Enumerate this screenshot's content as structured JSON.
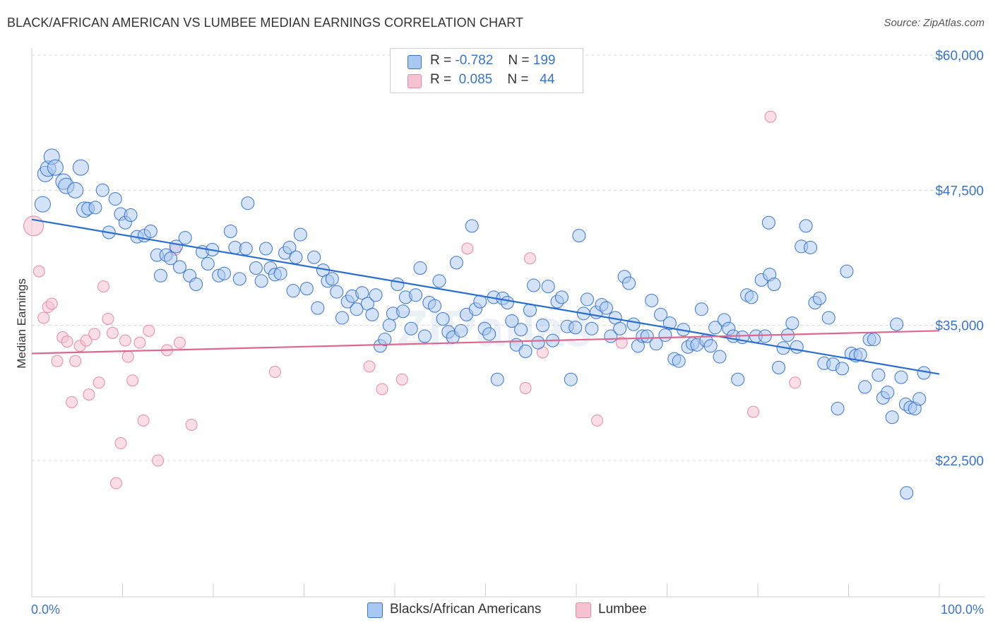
{
  "title": "BLACK/AFRICAN AMERICAN VS LUMBEE MEDIAN EARNINGS CORRELATION CHART",
  "source": "Source: ZipAtlas.com",
  "legend_top": {
    "rows": [
      {
        "r_label": "R =",
        "r_value": "-0.782",
        "n_label": "N =",
        "n_value": "199"
      },
      {
        "r_label": "R =",
        "r_value": "0.085",
        "n_label": "N =",
        "n_value": "44"
      }
    ]
  },
  "legend_bottom": [
    "Blacks/African Americans",
    "Lumbee"
  ],
  "colors": {
    "blue_fill": "#a9c8f1",
    "blue_stroke": "#3a74c9",
    "blue_line": "#2a6dd1",
    "pink_fill": "#f6c2d2",
    "pink_stroke": "#e589a8",
    "pink_line": "#e0668f",
    "tick_text": "#3a74c9",
    "grid": "#d8d8d8"
  },
  "chart_data": {
    "type": "scatter",
    "title": "BLACK/AFRICAN AMERICAN VS LUMBEE MEDIAN EARNINGS CORRELATION CHART",
    "ylabel": "Median Earnings",
    "xlabel": "",
    "xlim": [
      0,
      100
    ],
    "ylim": [
      12000,
      62000
    ],
    "x_tick_labels": [
      "0.0%",
      "100.0%"
    ],
    "y_ticks": [
      22500,
      35000,
      47500,
      60000
    ],
    "y_tick_labels": [
      "$22,500",
      "$35,000",
      "$47,500",
      "$60,000"
    ],
    "grid": true,
    "legend_position": "top-center and bottom",
    "series": [
      {
        "name": "Blacks/African Americans",
        "r": -0.782,
        "n": 199,
        "trend": {
          "x": [
            0,
            100
          ],
          "y": [
            44800,
            30500
          ]
        },
        "points": [
          [
            1.2,
            46200
          ],
          [
            1.5,
            49000
          ],
          [
            1.8,
            49500
          ],
          [
            2.2,
            50600
          ],
          [
            2.6,
            49600
          ],
          [
            3.5,
            48300
          ],
          [
            3.8,
            47900
          ],
          [
            4.8,
            47500
          ],
          [
            5.4,
            49600
          ],
          [
            5.8,
            45700
          ],
          [
            6.2,
            45800
          ],
          [
            7.0,
            45900
          ],
          [
            7.8,
            47500
          ],
          [
            8.5,
            43600
          ],
          [
            9.2,
            46700
          ],
          [
            9.8,
            45300
          ],
          [
            10.3,
            44500
          ],
          [
            10.9,
            45200
          ],
          [
            11.6,
            43200
          ],
          [
            12.4,
            43300
          ],
          [
            13.1,
            43700
          ],
          [
            13.8,
            41500
          ],
          [
            14.2,
            39600
          ],
          [
            14.8,
            41500
          ],
          [
            15.3,
            41200
          ],
          [
            15.9,
            42300
          ],
          [
            16.3,
            40400
          ],
          [
            16.9,
            43100
          ],
          [
            17.4,
            39600
          ],
          [
            18.1,
            38800
          ],
          [
            18.8,
            41800
          ],
          [
            19.4,
            40700
          ],
          [
            19.9,
            42000
          ],
          [
            20.6,
            39600
          ],
          [
            21.2,
            39800
          ],
          [
            21.9,
            43700
          ],
          [
            22.4,
            42200
          ],
          [
            22.9,
            39300
          ],
          [
            23.6,
            42100
          ],
          [
            23.8,
            46300
          ],
          [
            24.7,
            40300
          ],
          [
            25.3,
            39100
          ],
          [
            25.8,
            42100
          ],
          [
            26.3,
            40300
          ],
          [
            26.8,
            39700
          ],
          [
            27.4,
            39800
          ],
          [
            27.9,
            41700
          ],
          [
            28.4,
            42200
          ],
          [
            28.8,
            38200
          ],
          [
            29.1,
            41300
          ],
          [
            29.6,
            43400
          ],
          [
            30.3,
            38400
          ],
          [
            31.1,
            41300
          ],
          [
            31.5,
            36600
          ],
          [
            32.1,
            40100
          ],
          [
            32.6,
            39100
          ],
          [
            33.1,
            39300
          ],
          [
            33.6,
            38100
          ],
          [
            34.2,
            35700
          ],
          [
            34.8,
            37200
          ],
          [
            35.3,
            37700
          ],
          [
            35.8,
            36500
          ],
          [
            36.4,
            38000
          ],
          [
            37.0,
            37000
          ],
          [
            37.5,
            36000
          ],
          [
            37.9,
            37800
          ],
          [
            38.4,
            33100
          ],
          [
            38.9,
            33700
          ],
          [
            39.4,
            35000
          ],
          [
            39.8,
            36100
          ],
          [
            40.3,
            38800
          ],
          [
            40.9,
            36300
          ],
          [
            41.2,
            37600
          ],
          [
            41.8,
            34700
          ],
          [
            42.3,
            37800
          ],
          [
            42.8,
            40300
          ],
          [
            43.3,
            34000
          ],
          [
            43.8,
            37100
          ],
          [
            44.4,
            36800
          ],
          [
            44.9,
            39100
          ],
          [
            45.3,
            35600
          ],
          [
            45.9,
            34400
          ],
          [
            46.4,
            33900
          ],
          [
            46.8,
            40800
          ],
          [
            47.3,
            34500
          ],
          [
            47.9,
            36000
          ],
          [
            48.5,
            44200
          ],
          [
            48.9,
            36500
          ],
          [
            49.4,
            37200
          ],
          [
            49.9,
            34700
          ],
          [
            50.4,
            34200
          ],
          [
            50.9,
            37600
          ],
          [
            51.3,
            30000
          ],
          [
            51.9,
            37500
          ],
          [
            52.4,
            37100
          ],
          [
            52.9,
            35400
          ],
          [
            53.4,
            33200
          ],
          [
            53.9,
            34600
          ],
          [
            54.4,
            32600
          ],
          [
            54.9,
            36400
          ],
          [
            55.3,
            38700
          ],
          [
            55.8,
            33400
          ],
          [
            56.3,
            35000
          ],
          [
            56.9,
            38600
          ],
          [
            57.4,
            33600
          ],
          [
            57.9,
            37200
          ],
          [
            58.4,
            37600
          ],
          [
            59.0,
            34900
          ],
          [
            59.4,
            30000
          ],
          [
            59.9,
            34800
          ],
          [
            60.3,
            43300
          ],
          [
            60.8,
            36100
          ],
          [
            61.2,
            37400
          ],
          [
            61.7,
            34700
          ],
          [
            62.2,
            36200
          ],
          [
            62.8,
            36900
          ],
          [
            63.3,
            36600
          ],
          [
            63.8,
            34000
          ],
          [
            64.3,
            35700
          ],
          [
            64.8,
            34700
          ],
          [
            65.3,
            39500
          ],
          [
            65.8,
            38900
          ],
          [
            66.3,
            35100
          ],
          [
            66.8,
            33100
          ],
          [
            67.3,
            34000
          ],
          [
            67.8,
            34000
          ],
          [
            68.3,
            37300
          ],
          [
            68.8,
            33300
          ],
          [
            69.3,
            36000
          ],
          [
            69.8,
            34100
          ],
          [
            70.3,
            35200
          ],
          [
            70.8,
            31900
          ],
          [
            71.3,
            31700
          ],
          [
            71.8,
            34600
          ],
          [
            72.3,
            33000
          ],
          [
            72.8,
            33300
          ],
          [
            73.3,
            33200
          ],
          [
            73.8,
            36500
          ],
          [
            74.3,
            33600
          ],
          [
            74.8,
            33100
          ],
          [
            75.3,
            34800
          ],
          [
            75.8,
            32100
          ],
          [
            76.3,
            35500
          ],
          [
            76.8,
            34700
          ],
          [
            77.3,
            34000
          ],
          [
            77.8,
            30000
          ],
          [
            78.3,
            33900
          ],
          [
            78.8,
            37800
          ],
          [
            79.3,
            37600
          ],
          [
            79.8,
            34000
          ],
          [
            80.4,
            39200
          ],
          [
            80.8,
            34000
          ],
          [
            81.3,
            39700
          ],
          [
            81.8,
            38800
          ],
          [
            81.2,
            44500
          ],
          [
            82.3,
            31100
          ],
          [
            82.8,
            32900
          ],
          [
            83.3,
            34100
          ],
          [
            83.8,
            35200
          ],
          [
            84.3,
            33000
          ],
          [
            84.8,
            42300
          ],
          [
            85.3,
            44200
          ],
          [
            85.8,
            42200
          ],
          [
            86.3,
            37100
          ],
          [
            86.8,
            37500
          ],
          [
            87.3,
            31500
          ],
          [
            87.8,
            35700
          ],
          [
            88.3,
            31400
          ],
          [
            88.8,
            27300
          ],
          [
            89.3,
            31000
          ],
          [
            89.8,
            40000
          ],
          [
            90.3,
            32400
          ],
          [
            90.8,
            32200
          ],
          [
            91.3,
            32300
          ],
          [
            91.8,
            29300
          ],
          [
            92.3,
            33700
          ],
          [
            92.8,
            33700
          ],
          [
            93.3,
            30400
          ],
          [
            93.8,
            28300
          ],
          [
            94.3,
            28800
          ],
          [
            94.8,
            26500
          ],
          [
            95.3,
            35100
          ],
          [
            95.8,
            30200
          ],
          [
            96.3,
            27700
          ],
          [
            96.8,
            27400
          ],
          [
            97.3,
            27300
          ],
          [
            97.8,
            28200
          ],
          [
            98.3,
            30600
          ],
          [
            96.4,
            19500
          ]
        ]
      },
      {
        "name": "Lumbee",
        "r": 0.085,
        "n": 44,
        "trend": {
          "x": [
            0,
            100
          ],
          "y": [
            32400,
            34500
          ]
        },
        "points": [
          [
            0.2,
            44200
          ],
          [
            0.8,
            40000
          ],
          [
            1.3,
            35700
          ],
          [
            1.8,
            36700
          ],
          [
            2.2,
            37000
          ],
          [
            2.8,
            31700
          ],
          [
            3.4,
            33900
          ],
          [
            3.9,
            33500
          ],
          [
            4.4,
            27900
          ],
          [
            4.8,
            31700
          ],
          [
            5.3,
            33100
          ],
          [
            6.0,
            33600
          ],
          [
            6.3,
            28600
          ],
          [
            6.9,
            34200
          ],
          [
            7.4,
            29700
          ],
          [
            7.9,
            38600
          ],
          [
            8.4,
            35600
          ],
          [
            8.9,
            34300
          ],
          [
            9.3,
            20400
          ],
          [
            9.8,
            24100
          ],
          [
            10.3,
            33600
          ],
          [
            10.6,
            32100
          ],
          [
            11.1,
            29900
          ],
          [
            11.9,
            33400
          ],
          [
            12.3,
            26200
          ],
          [
            12.9,
            34500
          ],
          [
            13.9,
            22500
          ],
          [
            14.9,
            32700
          ],
          [
            15.8,
            42000
          ],
          [
            16.3,
            33400
          ],
          [
            17.6,
            25800
          ],
          [
            26.8,
            30700
          ],
          [
            37.2,
            31200
          ],
          [
            38.6,
            29100
          ],
          [
            40.8,
            30000
          ],
          [
            48.0,
            42100
          ],
          [
            54.4,
            29200
          ],
          [
            54.9,
            41200
          ],
          [
            56.3,
            32500
          ],
          [
            62.3,
            26200
          ],
          [
            65.0,
            33400
          ],
          [
            79.5,
            27000
          ],
          [
            81.4,
            54300
          ],
          [
            84.1,
            29700
          ]
        ]
      }
    ]
  }
}
